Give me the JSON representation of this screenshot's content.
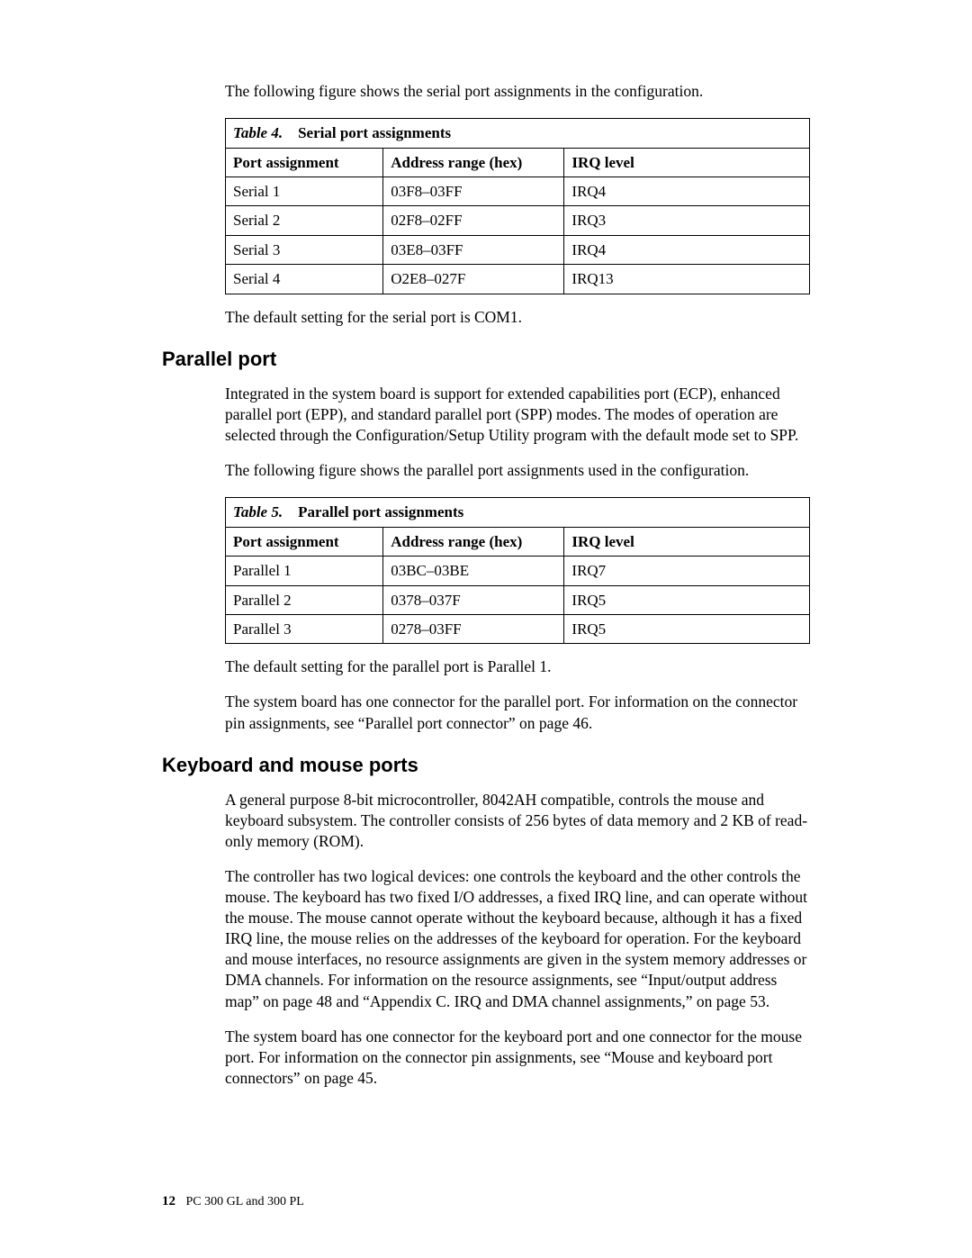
{
  "intro_serial": "The following figure shows the serial port assignments in the configuration.",
  "table4": {
    "caption_label": "Table 4.",
    "caption_title": "Serial port assignments",
    "col_widths_pct": [
      27,
      31,
      42
    ],
    "headers": [
      "Port assignment",
      "Address range (hex)",
      "IRQ level"
    ],
    "rows": [
      [
        "Serial 1",
        "03F8–03FF",
        "IRQ4"
      ],
      [
        "Serial 2",
        "02F8–02FF",
        "IRQ3"
      ],
      [
        "Serial 3",
        "03E8–03FF",
        "IRQ4"
      ],
      [
        "Serial 4",
        "O2E8–027F",
        "IRQ13"
      ]
    ]
  },
  "serial_default": "The default setting for the serial port is COM1.",
  "h_parallel": "Parallel port",
  "parallel_p1": "Integrated in the system board is support for extended capabilities port (ECP), enhanced parallel port (EPP), and standard parallel port (SPP) modes.  The modes of operation are selected through the Configuration/Setup Utility program with the default mode set to SPP.",
  "parallel_p2": "The following figure shows the parallel port assignments used in the configuration.",
  "table5": {
    "caption_label": "Table 5.",
    "caption_title": "Parallel port assignments",
    "col_widths_pct": [
      27,
      31,
      42
    ],
    "headers": [
      "Port assignment",
      "Address range (hex)",
      "IRQ level"
    ],
    "rows": [
      [
        "Parallel 1",
        "03BC–03BE",
        "IRQ7"
      ],
      [
        "Parallel 2",
        "0378–037F",
        "IRQ5"
      ],
      [
        "Parallel 3",
        "0278–03FF",
        "IRQ5"
      ]
    ]
  },
  "parallel_default": "The default setting for the parallel port is Parallel 1.",
  "parallel_conn": "The system board has one connector for the parallel port.  For information on the connector pin assignments, see “Parallel port connector” on page 46.",
  "h_kbm": "Keyboard and mouse ports",
  "kbm_p1": "A general purpose 8-bit microcontroller, 8042AH compatible, controls the mouse and keyboard subsystem.  The controller consists of 256 bytes of data memory and 2 KB of read-only memory (ROM).",
  "kbm_p2": "The controller has two logical devices: one controls the keyboard and the other controls the mouse.  The keyboard has two fixed I/O addresses, a fixed IRQ line, and can operate without the mouse.  The mouse cannot operate without the keyboard because, although it has a fixed IRQ line, the mouse relies on the addresses of the keyboard for operation.  For the keyboard and mouse interfaces, no resource assignments are given in the system memory addresses or DMA channels.  For information on the resource assignments, see “Input/output address map” on page 48 and “Appendix C. IRQ and DMA channel assignments,” on page 53.",
  "kbm_p3": "The system board has one connector for the keyboard port and one connector for the mouse port. For information on the connector pin assignments, see “Mouse and keyboard port connectors” on page 45.",
  "footer": {
    "page": "12",
    "book": "PC 300 GL and 300 PL"
  }
}
